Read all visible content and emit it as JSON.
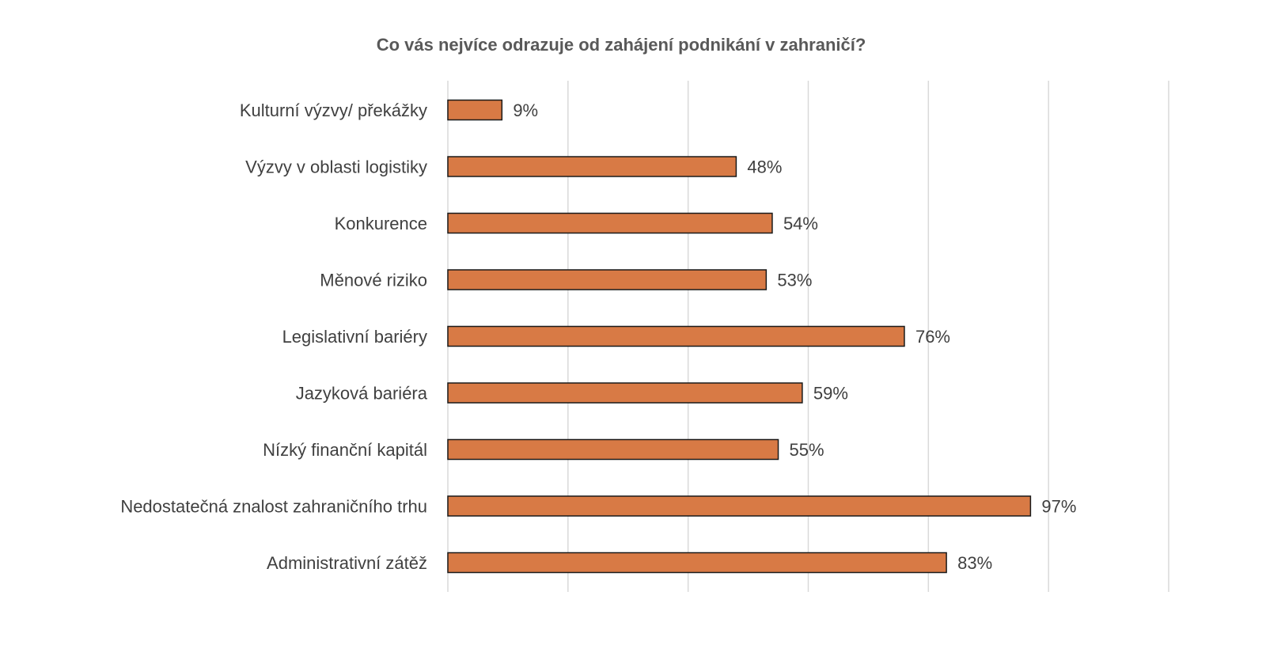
{
  "chart_data": {
    "type": "bar",
    "orientation": "horizontal",
    "title": "Co vás nejvíce odrazuje od zahájení podnikání v zahraničí?",
    "xlabel": "",
    "ylabel": "",
    "categories": [
      "Kulturní výzvy/ překážky",
      "Výzvy v oblasti logistiky",
      "Konkurence",
      "Měnové riziko",
      "Legislativní bariéry",
      "Jazyková bariéra",
      "Nízký finanční kapitál",
      "Nedostatečná znalost zahraničního trhu",
      "Administrativní zátěž"
    ],
    "values": [
      9,
      48,
      54,
      53,
      76,
      59,
      55,
      97,
      83
    ],
    "data_labels": [
      "9%",
      "48%",
      "54%",
      "53%",
      "76%",
      "59%",
      "55%",
      "97%",
      "83%"
    ],
    "xlim": [
      0,
      120
    ],
    "x_gridlines": [
      0,
      20,
      40,
      60,
      80,
      100,
      120
    ],
    "grid": true,
    "legend": "none",
    "bar_color": "#D87A45",
    "bar_edge_color": "#1a1a1a",
    "gridline_color": "#D9D9D9"
  }
}
